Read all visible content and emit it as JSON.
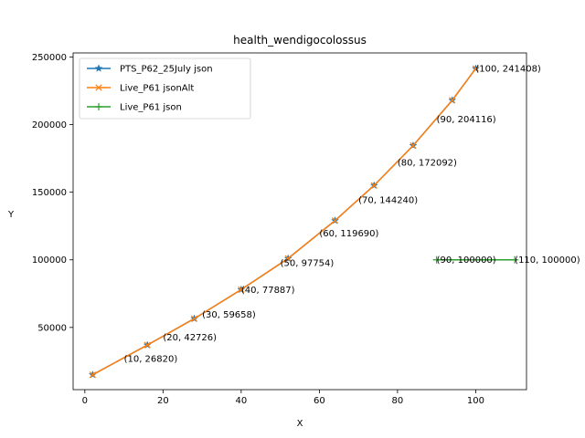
{
  "chart_data": {
    "type": "line",
    "title": "health_wendigocolossus",
    "xlabel": "X",
    "ylabel": "Y",
    "xlim": [
      -3,
      113
    ],
    "ylim": [
      4000,
      253000
    ],
    "xticks": [
      0,
      20,
      40,
      60,
      80,
      100
    ],
    "yticks": [
      50000,
      100000,
      150000,
      200000,
      250000
    ],
    "legend_position": "top-left",
    "grid": false,
    "series": [
      {
        "name": "PTS_P62_25July json",
        "color": "#1f77b4",
        "marker": "star",
        "x": [
          2,
          16,
          28,
          40,
          52,
          64,
          74,
          84,
          94,
          100
        ],
        "y": [
          15000,
          37000,
          56500,
          78000,
          101000,
          129000,
          155000,
          184500,
          218000,
          241408
        ]
      },
      {
        "name": "Live_P61 jsonAlt",
        "color": "#ff7f0e",
        "marker": "x",
        "x": [
          2,
          16,
          28,
          40,
          52,
          64,
          74,
          84,
          94,
          100
        ],
        "y": [
          15000,
          37000,
          56500,
          78000,
          101000,
          129000,
          155000,
          184500,
          218000,
          241408
        ]
      },
      {
        "name": "Live_P61 json",
        "color": "#2ca02c",
        "marker": "plus",
        "x": [
          90,
          110
        ],
        "y": [
          100000,
          100000
        ]
      }
    ],
    "annotations": [
      {
        "text": "(10, 26820)",
        "x": 10,
        "y": 26820
      },
      {
        "text": "(20, 42726)",
        "x": 20,
        "y": 42726
      },
      {
        "text": "(30, 59658)",
        "x": 30,
        "y": 59658
      },
      {
        "text": "(40, 77887)",
        "x": 40,
        "y": 77887
      },
      {
        "text": "(50, 97754)",
        "x": 50,
        "y": 97754
      },
      {
        "text": "(60, 119690)",
        "x": 60,
        "y": 119690
      },
      {
        "text": "(70, 144240)",
        "x": 70,
        "y": 144240
      },
      {
        "text": "(80, 172092)",
        "x": 80,
        "y": 172092
      },
      {
        "text": "(90, 204116)",
        "x": 90,
        "y": 204116
      },
      {
        "text": "(100, 241408)",
        "x": 100,
        "y": 241408
      },
      {
        "text": "(90, 100000)",
        "x": 90,
        "y": 100000
      },
      {
        "text": "(110, 100000)",
        "x": 110,
        "y": 100000
      }
    ]
  }
}
